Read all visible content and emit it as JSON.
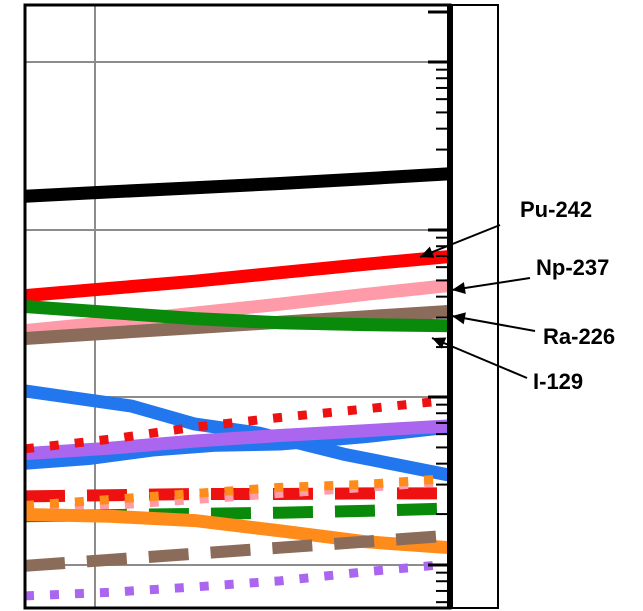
{
  "chart_data": {
    "type": "line",
    "x_range": [
      0,
      1
    ],
    "y_range": [
      0,
      1
    ],
    "grid": true,
    "legend": "right",
    "series": [
      {
        "name": "Pu-242",
        "color": "#ff0000",
        "style": "solid",
        "x": [
          0,
          0.2,
          0.4,
          0.6,
          0.8,
          1.0
        ],
        "y": [
          0.518,
          0.53,
          0.542,
          0.556,
          0.57,
          0.583
        ]
      },
      {
        "name": "Np-237",
        "color": "#ff9aa8",
        "style": "solid",
        "x": [
          0,
          0.2,
          0.4,
          0.6,
          0.8,
          1.0
        ],
        "y": [
          0.46,
          0.474,
          0.489,
          0.504,
          0.52,
          0.535
        ]
      },
      {
        "name": "Ra-226",
        "color": "#8b6b5a",
        "style": "solid",
        "x": [
          0,
          0.2,
          0.4,
          0.6,
          0.8,
          1.0
        ],
        "y": [
          0.447,
          0.456,
          0.465,
          0.474,
          0.483,
          0.492
        ]
      },
      {
        "name": "I-129",
        "color": "#0a8a0a",
        "style": "solid",
        "x": [
          0,
          0.2,
          0.4,
          0.6,
          0.8,
          1.0
        ],
        "y": [
          0.5,
          0.49,
          0.48,
          0.473,
          0.47,
          0.468
        ]
      },
      {
        "color": "#000000",
        "style": "solid",
        "x": [
          0,
          0.2,
          0.4,
          0.6,
          0.8,
          1.0
        ],
        "y": [
          0.683,
          0.69,
          0.697,
          0.704,
          0.712,
          0.72
        ]
      },
      {
        "color": "#2277ee",
        "style": "solid",
        "x": [
          0,
          0.1,
          0.25,
          0.4,
          0.55,
          0.75,
          1.0
        ],
        "y": [
          0.36,
          0.35,
          0.335,
          0.305,
          0.29,
          0.255,
          0.22
        ]
      },
      {
        "color": "#2277ee",
        "style": "solid",
        "x": [
          0,
          0.15,
          0.3,
          0.45,
          0.6,
          0.8,
          1.0
        ],
        "y": [
          0.24,
          0.248,
          0.262,
          0.27,
          0.272,
          0.284,
          0.3
        ]
      },
      {
        "color": "#aa66ee",
        "style": "solid",
        "x": [
          0,
          0.2,
          0.4,
          0.6,
          0.8,
          1.0
        ],
        "y": [
          0.256,
          0.265,
          0.277,
          0.286,
          0.294,
          0.302
        ]
      },
      {
        "color": "#ee1111",
        "style": "dotted",
        "x": [
          0,
          0.2,
          0.4,
          0.6,
          0.8,
          1.0
        ],
        "y": [
          0.264,
          0.28,
          0.3,
          0.316,
          0.33,
          0.345
        ]
      },
      {
        "color": "#ee1111",
        "style": "dashed",
        "x": [
          0,
          0.2,
          0.4,
          0.6,
          0.8,
          1.0
        ],
        "y": [
          0.185,
          0.187,
          0.189,
          0.189,
          0.19,
          0.19
        ]
      },
      {
        "color": "#ff9aa8",
        "style": "dotted",
        "x": [
          0,
          0.2,
          0.4,
          0.6,
          0.8,
          1.0
        ],
        "y": [
          0.16,
          0.17,
          0.18,
          0.19,
          0.2,
          0.21
        ]
      },
      {
        "color": "#ff8c1a",
        "style": "dotted",
        "x": [
          0,
          0.2,
          0.4,
          0.6,
          0.8,
          1.0
        ],
        "y": [
          0.17,
          0.18,
          0.19,
          0.2,
          0.205,
          0.215
        ]
      },
      {
        "color": "#0a8a0a",
        "style": "dashed",
        "x": [
          0,
          0.2,
          0.4,
          0.6,
          0.8,
          1.0
        ],
        "y": [
          0.152,
          0.154,
          0.156,
          0.158,
          0.161,
          0.165
        ]
      },
      {
        "color": "#ff8c1a",
        "style": "solid",
        "x": [
          0,
          0.2,
          0.4,
          0.6,
          0.8,
          1.0
        ],
        "y": [
          0.155,
          0.152,
          0.145,
          0.128,
          0.11,
          0.1
        ]
      },
      {
        "color": "#8b6b5a",
        "style": "dashed",
        "x": [
          0,
          0.2,
          0.4,
          0.6,
          0.8,
          1.0
        ],
        "y": [
          0.07,
          0.08,
          0.09,
          0.1,
          0.11,
          0.12
        ]
      },
      {
        "color": "#aa66ee",
        "style": "dotted",
        "x": [
          0,
          0.2,
          0.4,
          0.6,
          0.8,
          1.0
        ],
        "y": [
          0.02,
          0.026,
          0.035,
          0.045,
          0.06,
          0.073
        ]
      }
    ],
    "labels": [
      "Pu-242",
      "Np-237",
      "Ra-226",
      "I-129"
    ]
  }
}
